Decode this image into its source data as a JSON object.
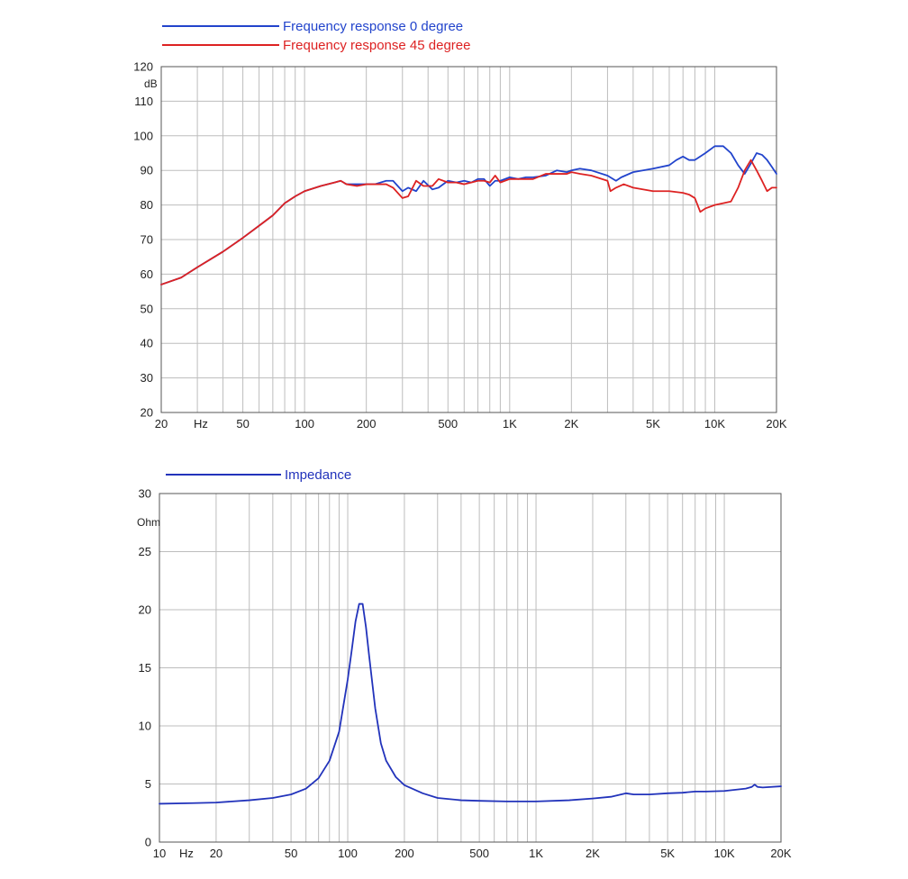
{
  "chart_data": [
    {
      "type": "line",
      "scale_x": "log",
      "xlim": [
        20,
        20000
      ],
      "ylim": [
        20,
        120
      ],
      "ylabel": "dB",
      "xlabel": "Hz",
      "grid": true,
      "legend_position": "top-left",
      "x_ticks": [
        {
          "value": 20,
          "label": "20"
        },
        {
          "value": 50,
          "label": "50"
        },
        {
          "value": 100,
          "label": "100"
        },
        {
          "value": 200,
          "label": "200"
        },
        {
          "value": 500,
          "label": "500"
        },
        {
          "value": 1000,
          "label": "1K"
        },
        {
          "value": 2000,
          "label": "2K"
        },
        {
          "value": 5000,
          "label": "5K"
        },
        {
          "value": 10000,
          "label": "10K"
        },
        {
          "value": 20000,
          "label": "20K"
        }
      ],
      "y_ticks": [
        20,
        30,
        40,
        50,
        60,
        70,
        80,
        90,
        100,
        110,
        120
      ],
      "series": [
        {
          "name": "Frequency response 0 degree",
          "color": "#2244cc",
          "x": [
            20,
            25,
            30,
            40,
            50,
            60,
            70,
            80,
            90,
            100,
            120,
            140,
            150,
            160,
            180,
            200,
            220,
            250,
            270,
            300,
            320,
            350,
            380,
            420,
            450,
            500,
            550,
            600,
            650,
            700,
            750,
            800,
            850,
            900,
            1000,
            1100,
            1200,
            1300,
            1500,
            1700,
            1900,
            2000,
            2200,
            2500,
            3000,
            3300,
            3500,
            4000,
            5000,
            6000,
            6500,
            7000,
            7500,
            8000,
            9000,
            10000,
            11000,
            12000,
            13000,
            14000,
            15000,
            16000,
            17000,
            18000,
            19000,
            20000
          ],
          "values": [
            57,
            59,
            62,
            66.5,
            70.5,
            74,
            77,
            80.5,
            82.5,
            84,
            85.5,
            86.5,
            87,
            86,
            86,
            86,
            86,
            87,
            87,
            84,
            85,
            84,
            87,
            84.5,
            85,
            87,
            86.5,
            87,
            86.5,
            87.5,
            87.5,
            85.5,
            87,
            87,
            88,
            87.5,
            88,
            88,
            88.5,
            90,
            89.5,
            90,
            90.5,
            90,
            88.5,
            87,
            88,
            89.5,
            90.5,
            91.5,
            93,
            94,
            93,
            93,
            95,
            97,
            97,
            95,
            91.5,
            89,
            92,
            95,
            94.5,
            93,
            91,
            89
          ]
        },
        {
          "name": "Frequency response 45 degree",
          "color": "#dd2222",
          "x": [
            20,
            25,
            30,
            40,
            50,
            60,
            70,
            80,
            90,
            100,
            120,
            140,
            150,
            160,
            180,
            200,
            220,
            250,
            270,
            300,
            320,
            350,
            380,
            420,
            450,
            500,
            550,
            600,
            650,
            700,
            750,
            800,
            850,
            900,
            1000,
            1100,
            1200,
            1300,
            1500,
            1700,
            1900,
            2000,
            2200,
            2500,
            3000,
            3100,
            3300,
            3600,
            4000,
            5000,
            6000,
            7000,
            7500,
            8000,
            8500,
            9000,
            10000,
            11000,
            12000,
            13000,
            14000,
            15000,
            16000,
            17000,
            18000,
            19000,
            20000
          ],
          "values": [
            57,
            59,
            62,
            66.5,
            70.5,
            74,
            77,
            80.5,
            82.5,
            84,
            85.5,
            86.5,
            87,
            86,
            85.5,
            86,
            86,
            86,
            85,
            82,
            82.5,
            87,
            85.5,
            85.5,
            87.5,
            86.5,
            86.5,
            86,
            86.5,
            87,
            87,
            86.5,
            88.5,
            86.5,
            87.5,
            87.5,
            87.5,
            87.5,
            89,
            89,
            89,
            89.5,
            89,
            88.5,
            87,
            84,
            85,
            86,
            85,
            84,
            84,
            83.5,
            83,
            82,
            78,
            79,
            80,
            80.5,
            81,
            85,
            90,
            93,
            90,
            87,
            84,
            85,
            85
          ]
        }
      ]
    },
    {
      "type": "line",
      "scale_x": "log",
      "xlim": [
        10,
        20000
      ],
      "ylim": [
        0,
        30
      ],
      "ylabel": "Ohm",
      "xlabel": "Hz",
      "grid": true,
      "legend_position": "top-left",
      "x_ticks": [
        {
          "value": 10,
          "label": "10"
        },
        {
          "value": 20,
          "label": "20"
        },
        {
          "value": 50,
          "label": "50"
        },
        {
          "value": 100,
          "label": "100"
        },
        {
          "value": 200,
          "label": "200"
        },
        {
          "value": 500,
          "label": "500"
        },
        {
          "value": 1000,
          "label": "1K"
        },
        {
          "value": 2000,
          "label": "2K"
        },
        {
          "value": 5000,
          "label": "5K"
        },
        {
          "value": 10000,
          "label": "10K"
        },
        {
          "value": 20000,
          "label": "20K"
        }
      ],
      "y_ticks": [
        0,
        5,
        10,
        15,
        20,
        25,
        30
      ],
      "series": [
        {
          "name": "Impedance",
          "color": "#2233bb",
          "x": [
            10,
            15,
            20,
            30,
            40,
            50,
            60,
            70,
            80,
            90,
            100,
            105,
            110,
            115,
            120,
            125,
            130,
            140,
            150,
            160,
            180,
            200,
            250,
            300,
            400,
            500,
            700,
            1000,
            1500,
            2000,
            2500,
            3000,
            3300,
            4000,
            5000,
            6000,
            7000,
            8000,
            10000,
            13000,
            14000,
            14500,
            15000,
            16000,
            20000
          ],
          "values": [
            3.3,
            3.35,
            3.4,
            3.6,
            3.8,
            4.1,
            4.6,
            5.5,
            7.0,
            9.5,
            14,
            16.5,
            19,
            20.5,
            20.5,
            18.5,
            16.0,
            11.5,
            8.5,
            7.0,
            5.6,
            4.9,
            4.2,
            3.8,
            3.6,
            3.55,
            3.5,
            3.5,
            3.6,
            3.75,
            3.9,
            4.2,
            4.1,
            4.1,
            4.2,
            4.25,
            4.35,
            4.35,
            4.4,
            4.6,
            4.75,
            4.95,
            4.75,
            4.7,
            4.8
          ]
        }
      ]
    }
  ]
}
